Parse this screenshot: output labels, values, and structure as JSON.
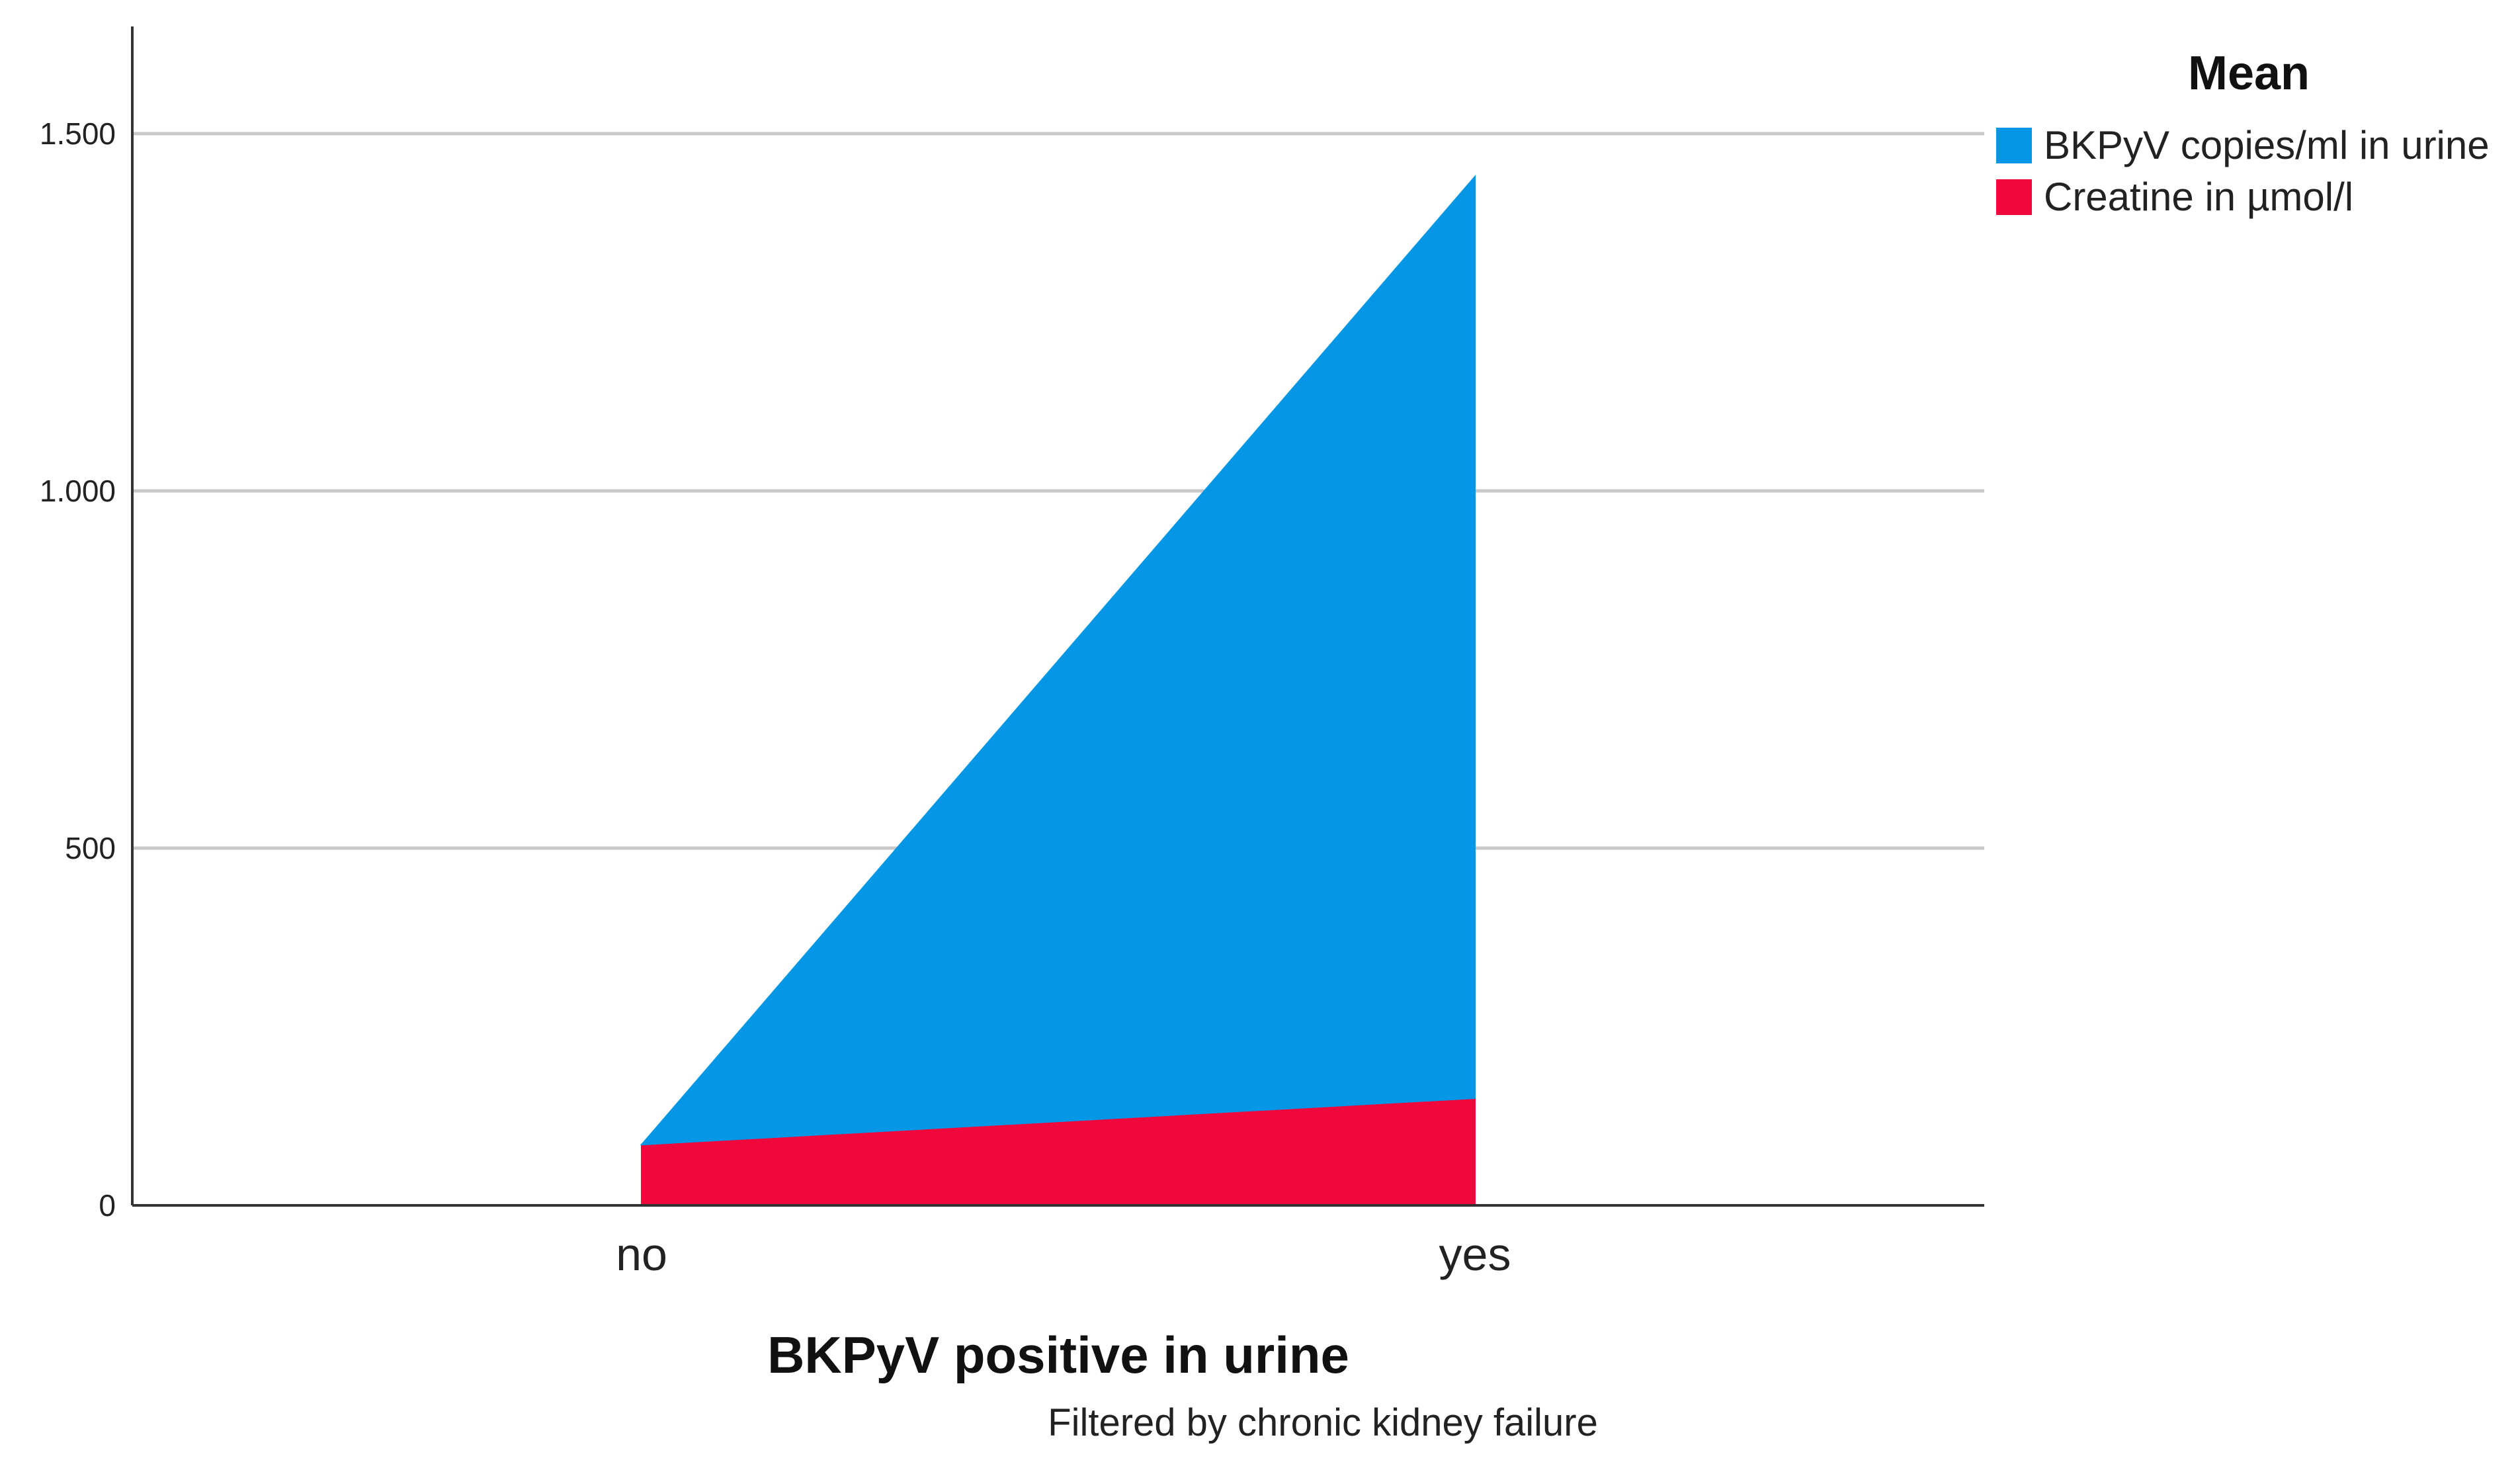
{
  "chart_data": {
    "type": "area",
    "categories": [
      "no",
      "yes"
    ],
    "series": [
      {
        "name": "Creatine in µmol/l",
        "color": "#F0083C",
        "values": [
          85,
          150
        ]
      },
      {
        "name": "BKPyV copies/ml in urine",
        "color": "#0597E6",
        "values": [
          0,
          1290
        ]
      }
    ],
    "stacked": true,
    "xlabel": "BKPyV positive in urine",
    "ylabel": "",
    "footnote": "Filtered by chronic kidney failure",
    "ylim": [
      0,
      1650
    ],
    "yticks": [
      0,
      500,
      1000,
      1500
    ],
    "ytick_labels": [
      "0",
      "500",
      "1.000",
      "1.500"
    ],
    "grid": true,
    "gridline_color": "#C8C8C8",
    "legend": {
      "title": "Mean",
      "position": "top-right",
      "order": [
        "BKPyV copies/ml in urine",
        "Creatine in µmol/l"
      ]
    }
  }
}
